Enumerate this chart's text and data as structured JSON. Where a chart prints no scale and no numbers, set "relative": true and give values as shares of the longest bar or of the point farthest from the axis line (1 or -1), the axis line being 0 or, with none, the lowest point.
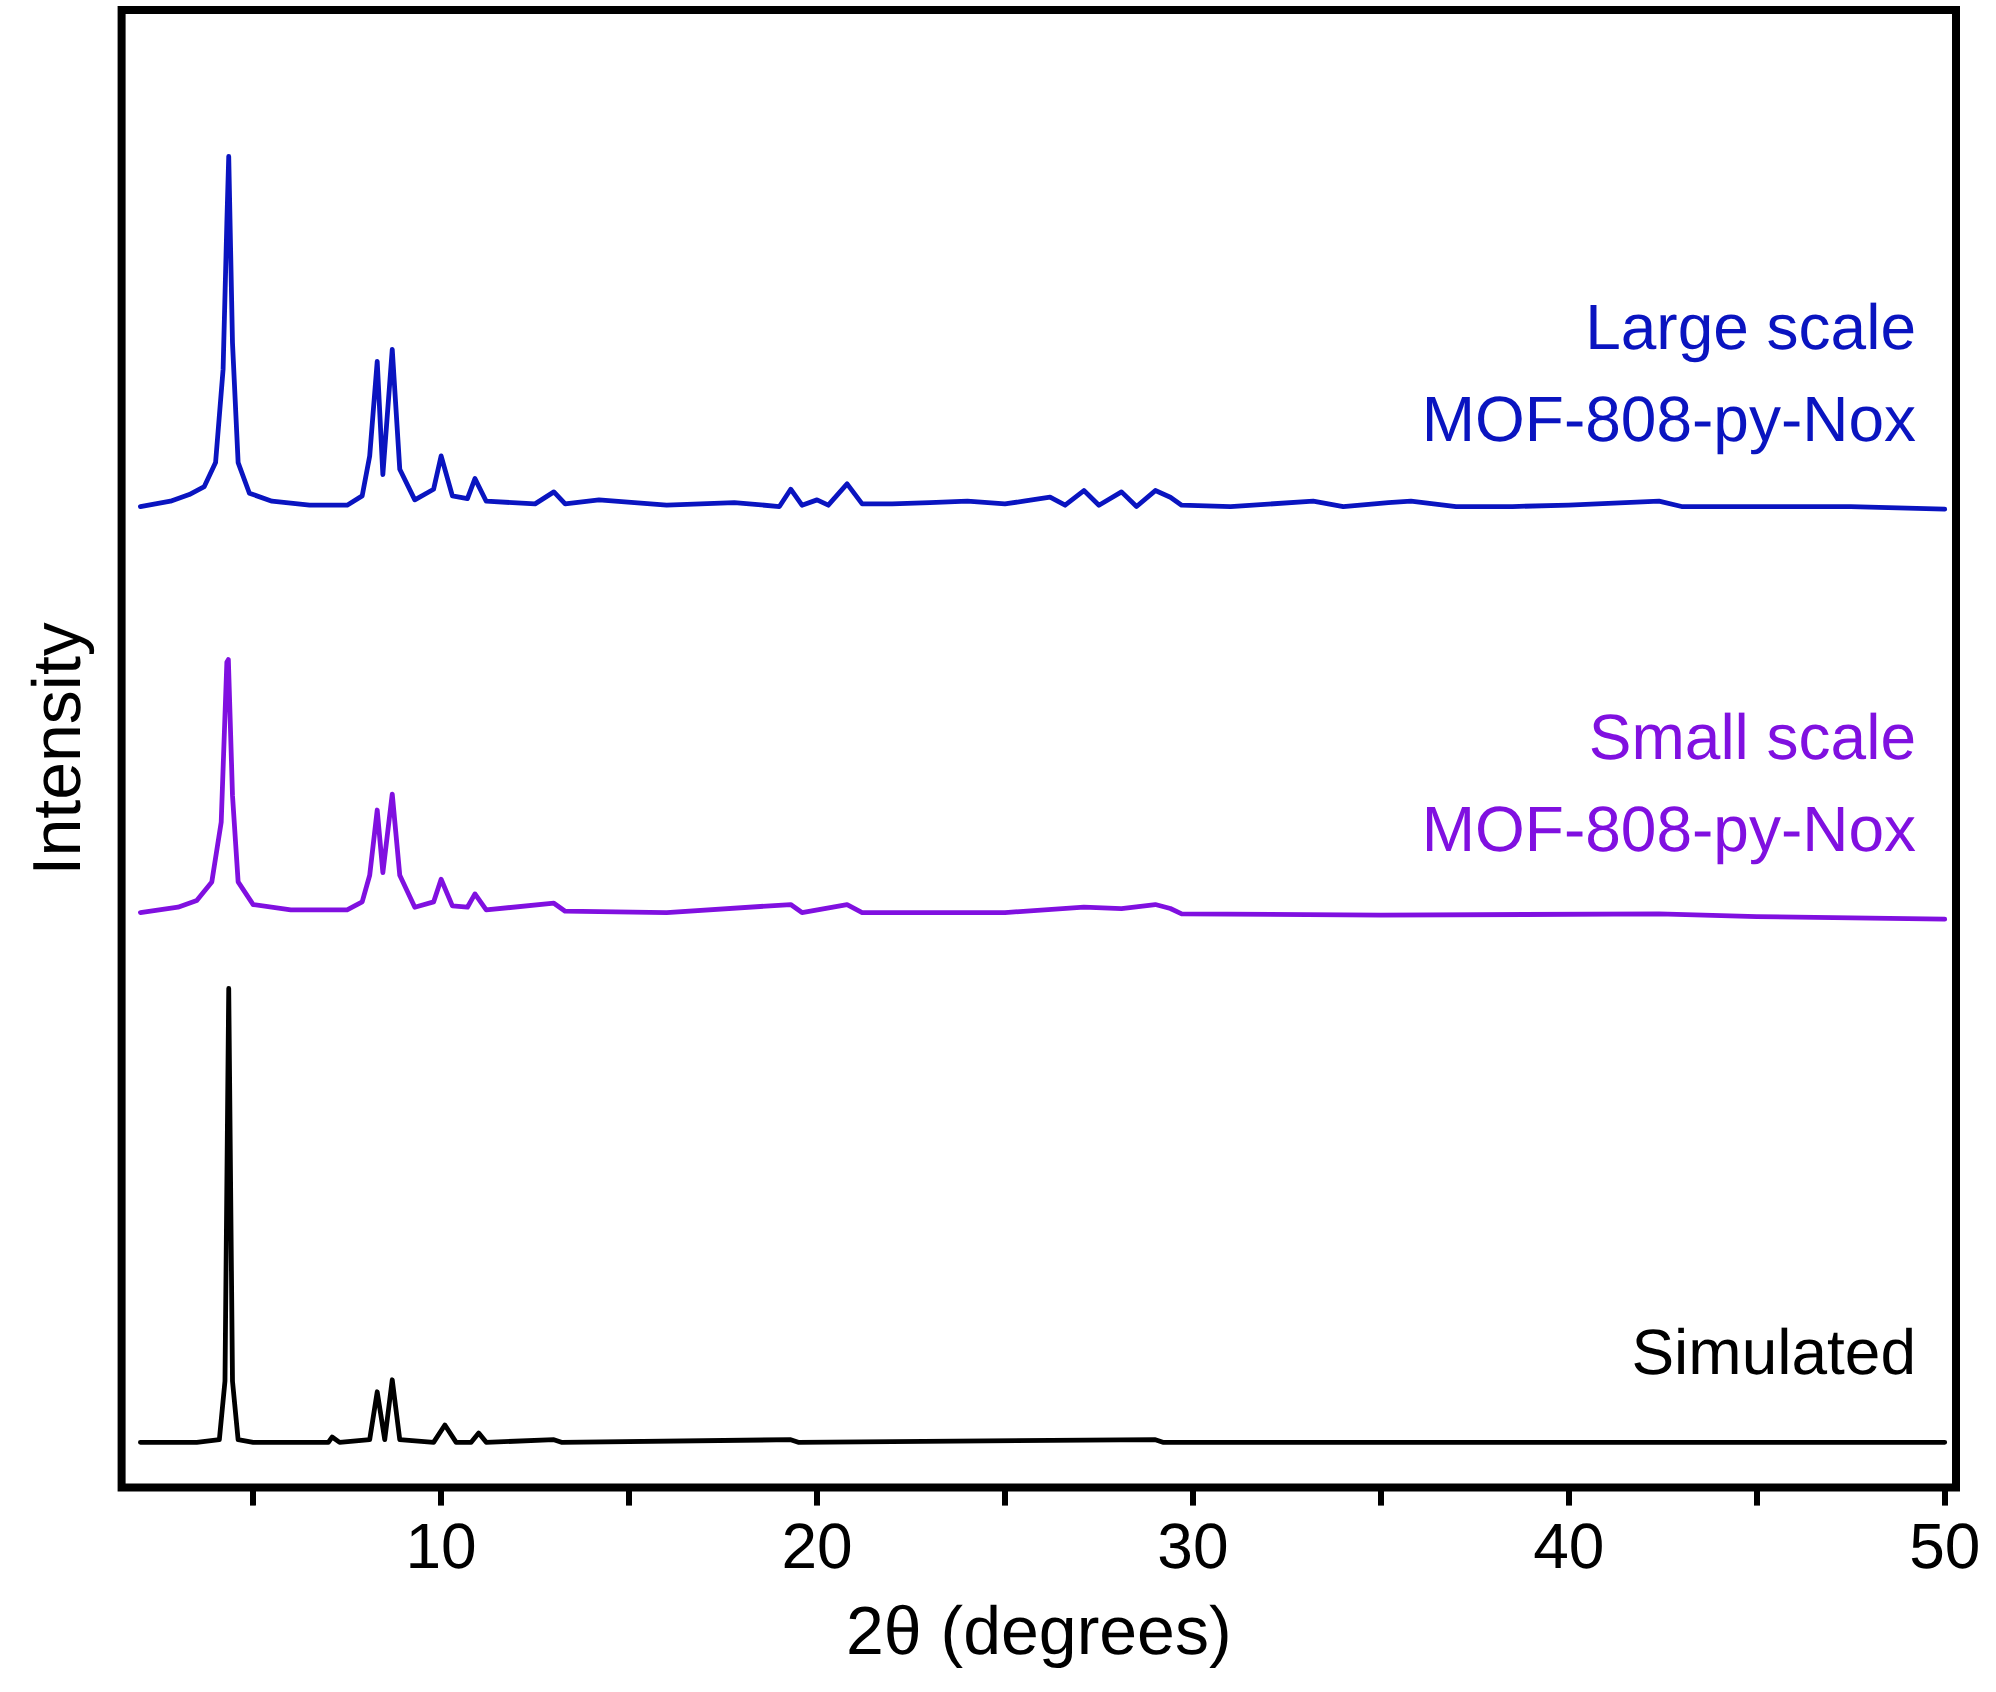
{
  "chart_data": {
    "type": "line",
    "xlabel": "2θ (degrees)",
    "ylabel": "Intensity",
    "relative": true,
    "xlim": [
      1.5,
      50.3
    ],
    "xticks": [
      {
        "value": 5,
        "label": null
      },
      10,
      {
        "value": 15,
        "label": null
      },
      20,
      {
        "value": 25,
        "label": null
      },
      30,
      {
        "value": 35,
        "label": null
      },
      40,
      {
        "value": 45,
        "label": null
      },
      50
    ],
    "grid": false,
    "legend": false,
    "marker": "none",
    "line_style": "solid",
    "series": [
      {
        "name": "Large scale\nMOF-808-py-Nox",
        "color": "#0a14c0",
        "x": [
          2.0,
          2.8,
          3.3,
          3.7,
          4.0,
          4.2,
          4.3,
          4.35,
          4.45,
          4.6,
          4.9,
          5.5,
          6.5,
          7.5,
          7.9,
          8.1,
          8.3,
          8.45,
          8.7,
          8.9,
          9.3,
          9.8,
          10.0,
          10.3,
          10.7,
          10.9,
          11.2,
          12.5,
          13.0,
          13.3,
          14.2,
          16.0,
          17.8,
          19.0,
          19.3,
          19.6,
          20.0,
          20.3,
          20.8,
          21.2,
          22.0,
          23.0,
          24.0,
          25.0,
          25.5,
          26.2,
          26.6,
          27.1,
          27.5,
          28.1,
          28.5,
          29.0,
          29.4,
          29.7,
          31.0,
          33.2,
          34.0,
          35.2,
          35.8,
          37.0,
          38.5,
          40.0,
          42.4,
          43.0,
          45.0,
          47.5,
          50.0
        ],
        "values": [
          0.737,
          0.741,
          0.746,
          0.752,
          0.77,
          0.84,
          0.95,
          1.0,
          0.86,
          0.77,
          0.747,
          0.741,
          0.738,
          0.738,
          0.745,
          0.775,
          0.846,
          0.761,
          0.855,
          0.765,
          0.742,
          0.75,
          0.775,
          0.745,
          0.743,
          0.758,
          0.741,
          0.739,
          0.748,
          0.739,
          0.742,
          0.738,
          0.74,
          0.737,
          0.75,
          0.738,
          0.742,
          0.738,
          0.754,
          0.739,
          0.739,
          0.74,
          0.741,
          0.739,
          0.741,
          0.744,
          0.738,
          0.749,
          0.738,
          0.748,
          0.737,
          0.749,
          0.744,
          0.738,
          0.737,
          0.741,
          0.737,
          0.74,
          0.741,
          0.737,
          0.737,
          0.738,
          0.741,
          0.737,
          0.737,
          0.737,
          0.735
        ]
      },
      {
        "name": "Small scale\nMOF-808-py-Nox",
        "color": "#8010e0",
        "x": [
          2.0,
          3.0,
          3.5,
          3.9,
          4.15,
          4.3,
          4.34,
          4.45,
          4.6,
          5.0,
          6.0,
          7.5,
          7.9,
          8.1,
          8.3,
          8.45,
          8.7,
          8.9,
          9.3,
          9.8,
          10.0,
          10.3,
          10.7,
          10.9,
          11.2,
          13.0,
          13.3,
          16.0,
          19.3,
          19.6,
          20.8,
          21.2,
          25.0,
          27.1,
          28.1,
          29.0,
          29.4,
          29.7,
          35.0,
          42.4,
          45.0,
          50.0
        ],
        "values": [
          0.432,
          0.436,
          0.441,
          0.455,
          0.5,
          0.62,
          0.622,
          0.52,
          0.455,
          0.438,
          0.434,
          0.434,
          0.44,
          0.46,
          0.509,
          0.462,
          0.521,
          0.46,
          0.436,
          0.44,
          0.457,
          0.437,
          0.436,
          0.446,
          0.434,
          0.439,
          0.433,
          0.432,
          0.438,
          0.432,
          0.438,
          0.432,
          0.432,
          0.436,
          0.435,
          0.438,
          0.435,
          0.431,
          0.43,
          0.431,
          0.429,
          0.427
        ]
      },
      {
        "name": "Simulated",
        "color": "#000000",
        "x": [
          2.0,
          3.5,
          4.1,
          4.25,
          4.35,
          4.45,
          4.6,
          5.0,
          7.0,
          7.1,
          7.3,
          8.1,
          8.3,
          8.5,
          8.7,
          8.9,
          9.8,
          10.1,
          10.4,
          10.8,
          11.0,
          11.2,
          13.0,
          13.2,
          19.3,
          19.5,
          29.0,
          29.2,
          50.0
        ],
        "values": [
          0.034,
          0.034,
          0.036,
          0.08,
          0.375,
          0.08,
          0.036,
          0.034,
          0.034,
          0.038,
          0.034,
          0.036,
          0.072,
          0.036,
          0.081,
          0.036,
          0.034,
          0.047,
          0.034,
          0.034,
          0.041,
          0.034,
          0.036,
          0.034,
          0.036,
          0.034,
          0.036,
          0.034,
          0.034
        ]
      }
    ]
  }
}
